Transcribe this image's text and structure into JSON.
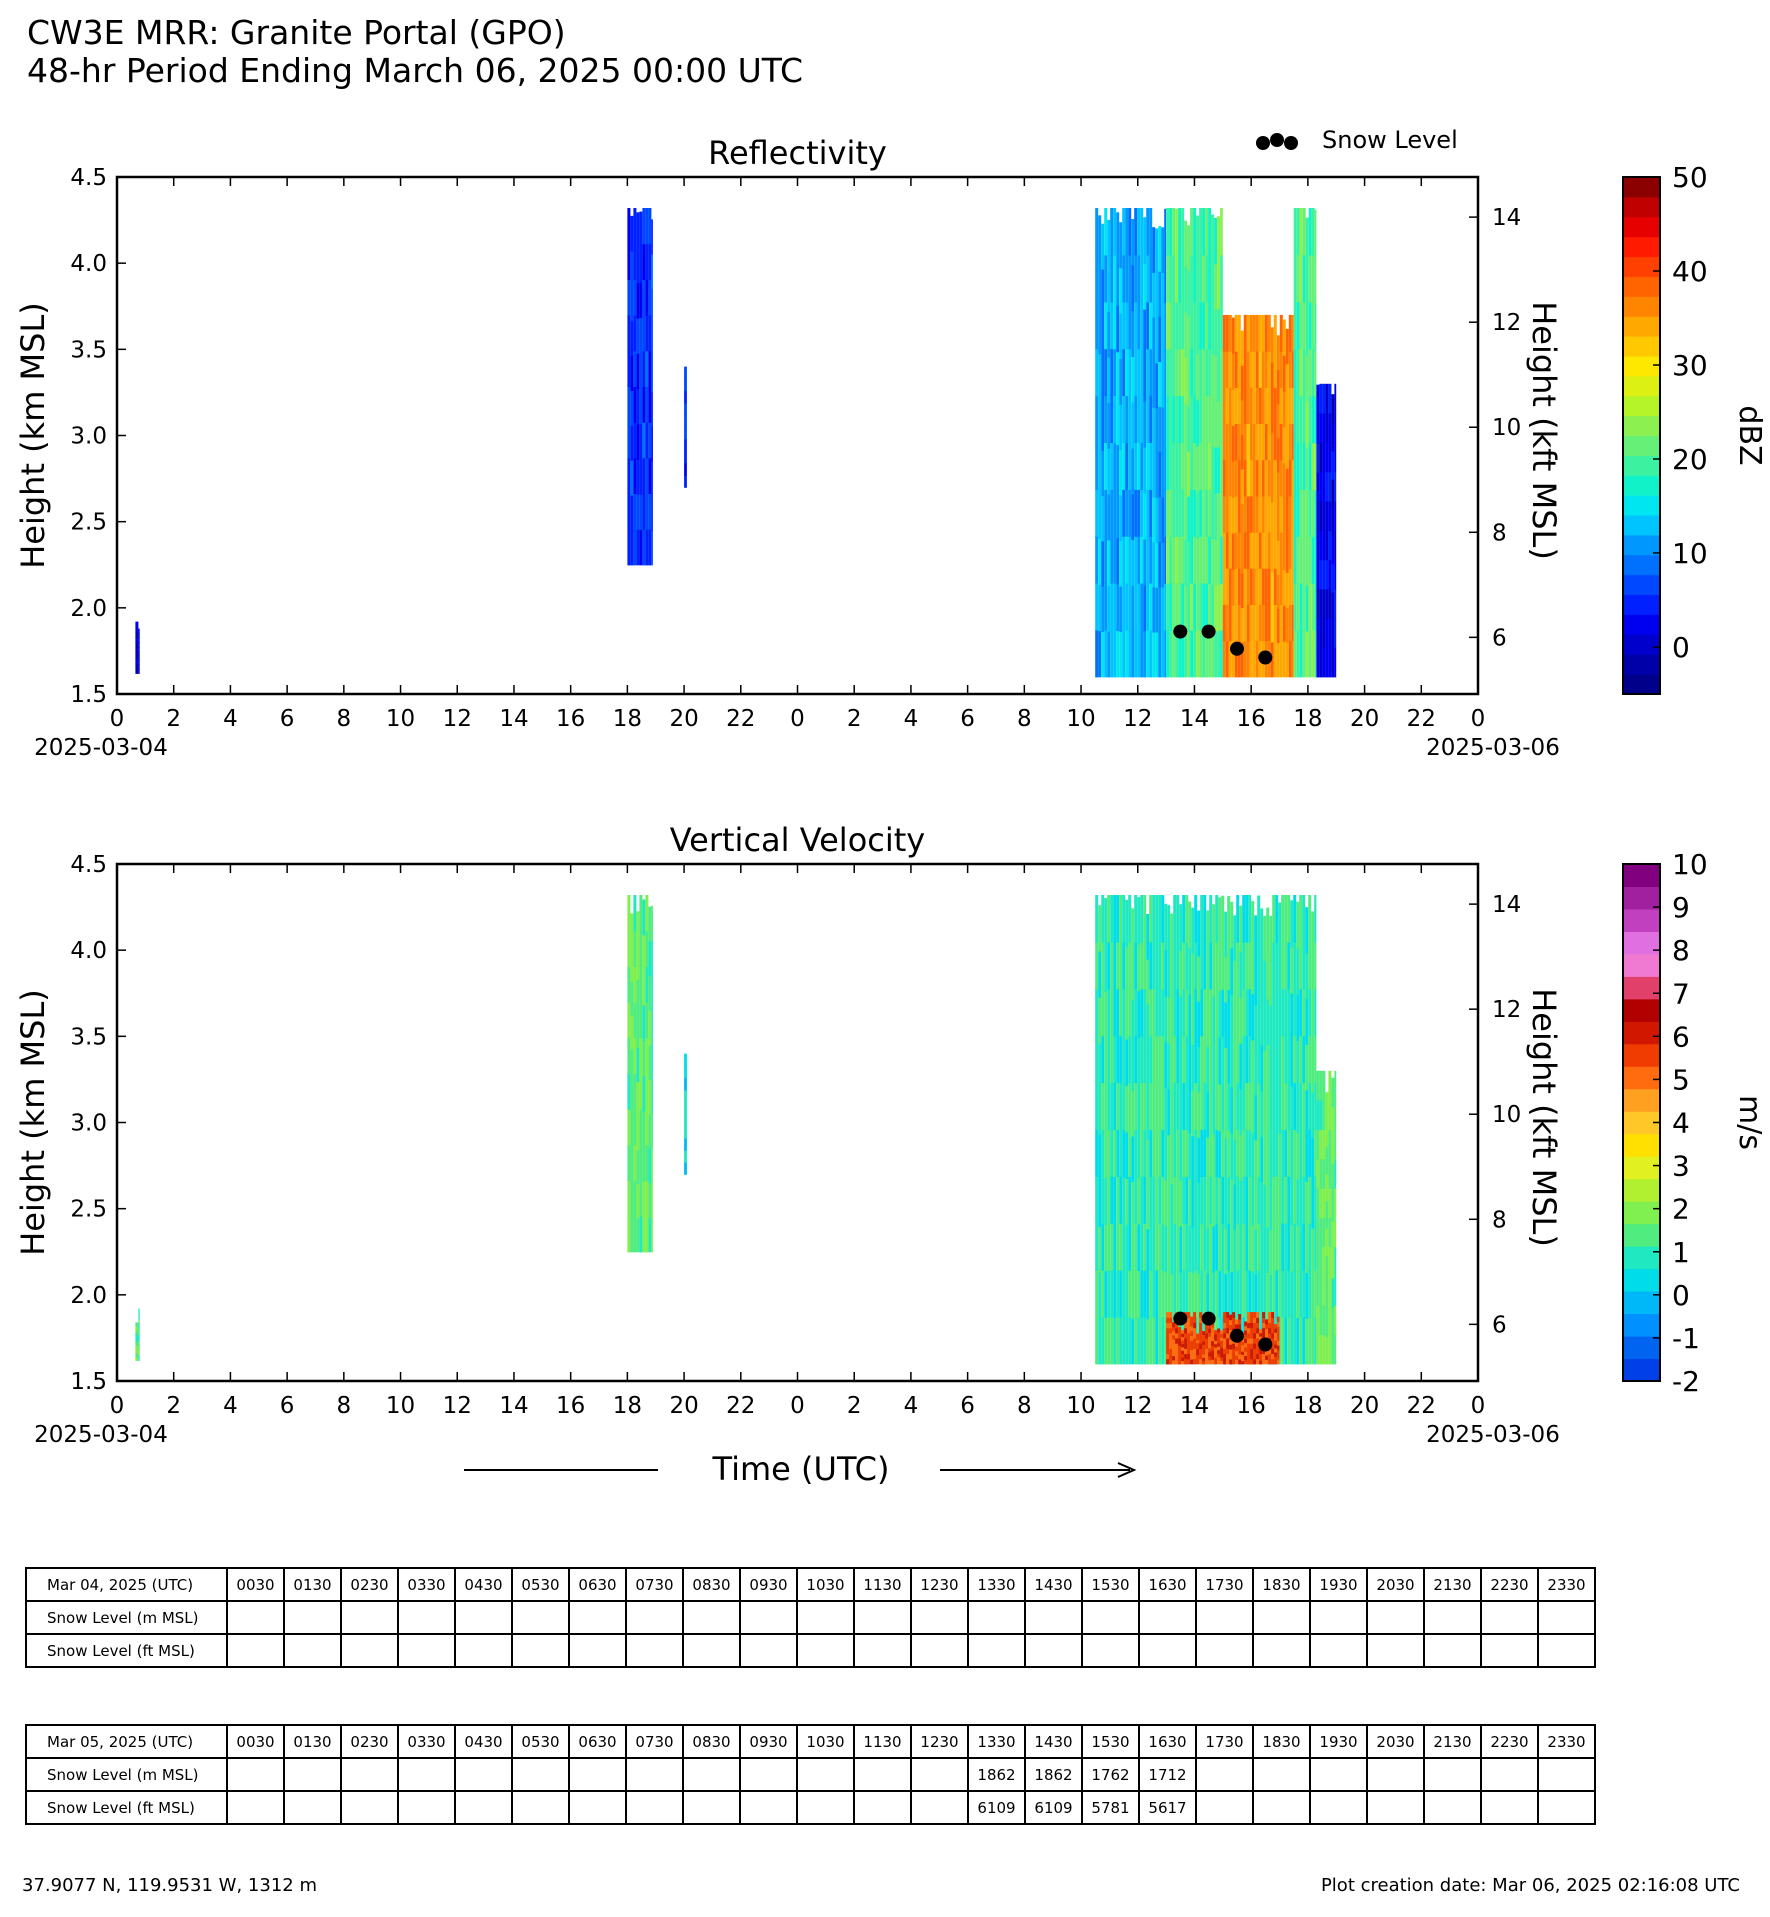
{
  "header": {
    "line1": "CW3E MRR: Granite Portal (GPO)",
    "line2": "48-hr Period Ending March 06, 2025 00:00 UTC"
  },
  "legend": {
    "snow_level_label": "Snow Level"
  },
  "x_axis_label": "Time (UTC)",
  "chart_data": [
    {
      "type": "heatmap",
      "title": "Reflectivity",
      "ylabel": "Height (km MSL)",
      "ylabel_right": "Height (kft MSL)",
      "colorbar_label": "dBZ",
      "ylim": [
        1.5,
        4.5
      ],
      "yticks": [
        "1.5",
        "2.0",
        "2.5",
        "3.0",
        "3.5",
        "4.0",
        "4.5"
      ],
      "yticks_right": [
        "6",
        "8",
        "10",
        "12",
        "14"
      ],
      "xlim_hours": [
        0,
        48
      ],
      "xticks": [
        "0",
        "2",
        "4",
        "6",
        "8",
        "10",
        "12",
        "14",
        "16",
        "18",
        "20",
        "22",
        "0",
        "2",
        "4",
        "6",
        "8",
        "10",
        "12",
        "14",
        "16",
        "18",
        "20",
        "22",
        "0"
      ],
      "x_date_labels": {
        "start": "2025-03-04",
        "end": "2025-03-06"
      },
      "colorbar_range": [
        -5,
        50
      ],
      "colorbar_ticks": [
        "0",
        "10",
        "20",
        "30",
        "40",
        "50"
      ],
      "colorbar_colors": [
        "#00008b",
        "#0000a8",
        "#0000cd",
        "#0000f0",
        "#0020ff",
        "#0048ff",
        "#0070ff",
        "#0098ff",
        "#00c4ff",
        "#00e6f0",
        "#12f2c8",
        "#3cf2a0",
        "#66f078",
        "#8cf050",
        "#b4f428",
        "#dcf014",
        "#ffe800",
        "#ffc800",
        "#ffa800",
        "#ff8400",
        "#ff6400",
        "#ff4000",
        "#ff1a00",
        "#e60000",
        "#c00000",
        "#8b0000"
      ],
      "snow_level_points": [
        {
          "hour": 37.5,
          "km": 1.862
        },
        {
          "hour": 38.5,
          "km": 1.862
        },
        {
          "hour": 39.5,
          "km": 1.762
        },
        {
          "hour": 40.5,
          "km": 1.712
        }
      ],
      "echo_regions": [
        {
          "start_hour": 0.65,
          "end_hour": 0.8,
          "bottom_km": 1.62,
          "top_km": 1.92,
          "dominant_dbz": 0
        },
        {
          "start_hour": 18.0,
          "end_hour": 18.9,
          "bottom_km": 2.25,
          "top_km": 4.32,
          "dominant_dbz": 5
        },
        {
          "start_hour": 20.0,
          "end_hour": 20.1,
          "bottom_km": 2.7,
          "top_km": 3.4,
          "dominant_dbz": 5
        },
        {
          "start_hour": 34.5,
          "end_hour": 37.0,
          "bottom_km": 1.6,
          "top_km": 4.32,
          "dominant_dbz": 12
        },
        {
          "start_hour": 37.0,
          "end_hour": 39.0,
          "bottom_km": 1.6,
          "top_km": 4.32,
          "dominant_dbz": 20
        },
        {
          "start_hour": 39.0,
          "end_hour": 41.5,
          "bottom_km": 1.6,
          "top_km": 3.7,
          "dominant_dbz": 36
        },
        {
          "start_hour": 41.5,
          "end_hour": 42.3,
          "bottom_km": 1.6,
          "top_km": 4.32,
          "dominant_dbz": 20
        },
        {
          "start_hour": 42.3,
          "end_hour": 43.0,
          "bottom_km": 1.6,
          "top_km": 3.3,
          "dominant_dbz": 2
        }
      ]
    },
    {
      "type": "heatmap",
      "title": "Vertical Velocity",
      "ylabel": "Height (km MSL)",
      "ylabel_right": "Height (kft MSL)",
      "colorbar_label": "m/s",
      "ylim": [
        1.5,
        4.5
      ],
      "yticks": [
        "1.5",
        "2.0",
        "2.5",
        "3.0",
        "3.5",
        "4.0",
        "4.5"
      ],
      "yticks_right": [
        "6",
        "8",
        "10",
        "12",
        "14"
      ],
      "xlim_hours": [
        0,
        48
      ],
      "xticks": [
        "0",
        "2",
        "4",
        "6",
        "8",
        "10",
        "12",
        "14",
        "16",
        "18",
        "20",
        "22",
        "0",
        "2",
        "4",
        "6",
        "8",
        "10",
        "12",
        "14",
        "16",
        "18",
        "20",
        "22",
        "0"
      ],
      "x_date_labels": {
        "start": "2025-03-04",
        "end": "2025-03-06"
      },
      "colorbar_range": [
        -2,
        10
      ],
      "colorbar_ticks": [
        "-2",
        "-1",
        "0",
        "1",
        "2",
        "3",
        "4",
        "5",
        "6",
        "7",
        "8",
        "9",
        "10"
      ],
      "colorbar_colors": [
        "#0040e6",
        "#0064f0",
        "#0090ff",
        "#00b8f8",
        "#00dce8",
        "#20e8c0",
        "#50ec80",
        "#80f050",
        "#b0f030",
        "#e0f020",
        "#ffe000",
        "#ffc828",
        "#ffa020",
        "#ff6c10",
        "#f03c00",
        "#d01800",
        "#b00000",
        "#e0406a",
        "#f07ad2",
        "#e070e0",
        "#c040c0",
        "#a020a0",
        "#800080"
      ],
      "snow_level_points": [
        {
          "hour": 37.5,
          "km": 1.862
        },
        {
          "hour": 38.5,
          "km": 1.862
        },
        {
          "hour": 39.5,
          "km": 1.762
        },
        {
          "hour": 40.5,
          "km": 1.712
        }
      ],
      "echo_regions": [
        {
          "start_hour": 0.65,
          "end_hour": 0.8,
          "bottom_km": 1.62,
          "top_km": 1.92,
          "dominant_ms": 1.5
        },
        {
          "start_hour": 18.0,
          "end_hour": 18.9,
          "bottom_km": 2.25,
          "top_km": 4.32,
          "dominant_ms": 1.5
        },
        {
          "start_hour": 20.0,
          "end_hour": 20.1,
          "bottom_km": 2.7,
          "top_km": 3.4,
          "dominant_ms": 0.5
        },
        {
          "start_hour": 34.5,
          "end_hour": 42.3,
          "bottom_km": 1.6,
          "top_km": 4.32,
          "dominant_ms": 1.0
        },
        {
          "start_hour": 37.0,
          "end_hour": 41.0,
          "bottom_km": 1.6,
          "top_km": 1.9,
          "dominant_ms": 5.5
        },
        {
          "start_hour": 42.3,
          "end_hour": 43.0,
          "bottom_km": 1.6,
          "top_km": 3.3,
          "dominant_ms": 1.5
        }
      ]
    }
  ],
  "tables": [
    {
      "header": "Mar 04, 2025 (UTC)",
      "times": [
        "0030",
        "0130",
        "0230",
        "0330",
        "0430",
        "0530",
        "0630",
        "0730",
        "0830",
        "0930",
        "1030",
        "1130",
        "1230",
        "1330",
        "1430",
        "1530",
        "1630",
        "1730",
        "1830",
        "1930",
        "2030",
        "2130",
        "2230",
        "2330"
      ],
      "rows": [
        {
          "label": "Snow Level (m MSL)",
          "values": [
            "",
            "",
            "",
            "",
            "",
            "",
            "",
            "",
            "",
            "",
            "",
            "",
            "",
            "",
            "",
            "",
            "",
            "",
            "",
            "",
            "",
            "",
            "",
            ""
          ]
        },
        {
          "label": "Snow Level (ft MSL)",
          "values": [
            "",
            "",
            "",
            "",
            "",
            "",
            "",
            "",
            "",
            "",
            "",
            "",
            "",
            "",
            "",
            "",
            "",
            "",
            "",
            "",
            "",
            "",
            "",
            ""
          ]
        }
      ]
    },
    {
      "header": "Mar 05, 2025 (UTC)",
      "times": [
        "0030",
        "0130",
        "0230",
        "0330",
        "0430",
        "0530",
        "0630",
        "0730",
        "0830",
        "0930",
        "1030",
        "1130",
        "1230",
        "1330",
        "1430",
        "1530",
        "1630",
        "1730",
        "1830",
        "1930",
        "2030",
        "2130",
        "2230",
        "2330"
      ],
      "rows": [
        {
          "label": "Snow Level (m MSL)",
          "values": [
            "",
            "",
            "",
            "",
            "",
            "",
            "",
            "",
            "",
            "",
            "",
            "",
            "",
            "1862",
            "1862",
            "1762",
            "1712",
            "",
            "",
            "",
            "",
            "",
            "",
            ""
          ]
        },
        {
          "label": "Snow Level (ft MSL)",
          "values": [
            "",
            "",
            "",
            "",
            "",
            "",
            "",
            "",
            "",
            "",
            "",
            "",
            "",
            "6109",
            "6109",
            "5781",
            "5617",
            "",
            "",
            "",
            "",
            "",
            "",
            ""
          ]
        }
      ]
    }
  ],
  "footer": {
    "location": "37.9077 N, 119.9531 W, 1312 m",
    "creation": "Plot creation date: Mar 06, 2025 02:16:08 UTC"
  }
}
